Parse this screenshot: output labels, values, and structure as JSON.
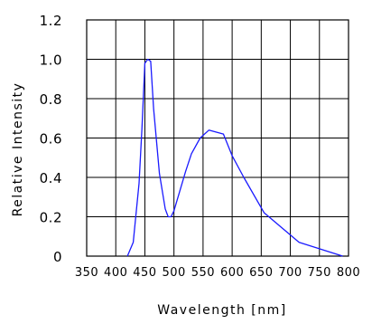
{
  "chart_data": {
    "type": "line",
    "title": "",
    "xlabel": "Wavelength [nm]",
    "ylabel": "Relative Intensity",
    "xlim": [
      350,
      800
    ],
    "ylim": [
      0,
      1.2
    ],
    "x_ticks": [
      350,
      400,
      450,
      500,
      550,
      600,
      650,
      700,
      750,
      800
    ],
    "x_tick_labels": [
      "350",
      "400",
      "450",
      "500",
      "550",
      "600",
      "650",
      "700",
      "750",
      "800"
    ],
    "y_ticks": [
      0,
      0.2,
      0.4,
      0.6,
      0.8,
      1.0,
      1.2
    ],
    "y_tick_labels": [
      "0",
      "0.2",
      "0.4",
      "0.6",
      "0.8",
      "1.0",
      "1.2"
    ],
    "grid": true,
    "colors": {
      "series": "#1a1aff",
      "grid": "#000000"
    },
    "series": [
      {
        "x": [
          420,
          430,
          440,
          445,
          450,
          455,
          460,
          465,
          475,
          485,
          490,
          495,
          500,
          510,
          520,
          530,
          545,
          560,
          585,
          600,
          620,
          655,
          715,
          790
        ],
        "y": [
          0.0,
          0.07,
          0.37,
          0.65,
          0.98,
          1.0,
          0.99,
          0.75,
          0.42,
          0.24,
          0.2,
          0.2,
          0.23,
          0.33,
          0.43,
          0.52,
          0.6,
          0.64,
          0.62,
          0.51,
          0.4,
          0.22,
          0.07,
          0.0
        ]
      }
    ]
  }
}
